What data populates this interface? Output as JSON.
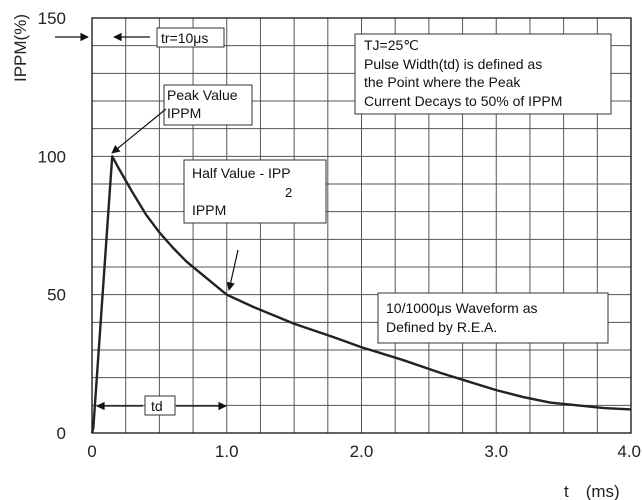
{
  "chart_data": {
    "type": "line",
    "ylabel": "IPPM(%)",
    "xlabel": "t　(ms)",
    "xlim": [
      0,
      4.0
    ],
    "ylim": [
      0,
      150
    ],
    "x_ticks": [
      0,
      1.0,
      2.0,
      3.0,
      4.0
    ],
    "x_tick_labels": [
      "0",
      "1.0",
      "2.0",
      "3.0",
      "4.0"
    ],
    "y_ticks": [
      0,
      50,
      100,
      150
    ],
    "y_tick_labels": [
      "0",
      "50",
      "100",
      "150"
    ],
    "grid": true,
    "series": [
      {
        "x": [
          0,
          0.01,
          0.15,
          0.2,
          0.3,
          0.4,
          0.5,
          0.6,
          0.7,
          0.8,
          1.0,
          1.2,
          1.5,
          1.8,
          2.0,
          2.3,
          2.6,
          2.8,
          3.0,
          3.2,
          3.4,
          3.6,
          3.8,
          4.0
        ],
        "y": [
          0,
          2,
          100,
          95.5,
          87,
          79,
          72.5,
          67,
          62,
          58,
          50,
          45.5,
          39.5,
          34.5,
          31,
          26.5,
          21.5,
          18.5,
          15.5,
          13,
          11,
          10,
          9,
          8.5
        ]
      }
    ],
    "annotations": {
      "tr": "tr=10μs",
      "td": "td",
      "peak_line1": "Peak Value",
      "peak_line2": "IPPM",
      "half_line1": "Half Value - IPP",
      "half_line2": "2",
      "half_line3": "IPPM",
      "tj_line1": "TJ=25℃",
      "tj_line2": "Pulse Width(td) is defined as",
      "tj_line3": "the Point where the Peak",
      "tj_line4": "Current Decays to 50% of IPPM",
      "wave_line1": "10/1000μs Waveform as",
      "wave_line2": "Defined by R.E.A."
    }
  }
}
